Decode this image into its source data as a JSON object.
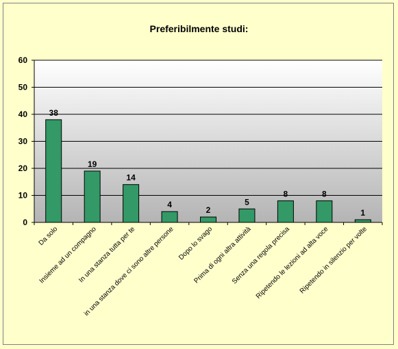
{
  "chart_data": {
    "type": "bar",
    "title": "Preferibilmente studi:",
    "xlabel": "",
    "ylabel": "",
    "ylim": [
      0,
      60
    ],
    "yticks": [
      0,
      10,
      20,
      30,
      40,
      50,
      60
    ],
    "grid": true,
    "legend": "none",
    "categories": [
      "Da solo",
      "Insieme ad un compagno",
      "In una stanza tutta per te",
      "in una stanza dove ci sono altre persone",
      "Dopo lo svago",
      "Prima di ogni altra attività",
      "Senza una regola precisa",
      "Ripetendo le lezioni ad alta voce",
      "Ripetendo in silenzio per volte"
    ],
    "values": [
      38,
      19,
      14,
      4,
      2,
      5,
      8,
      8,
      1
    ],
    "bar_color": "#339966",
    "bar_stroke": "#000000",
    "plot_gradient_top": "#ffffff",
    "plot_gradient_bottom": "#b4b4b4"
  }
}
